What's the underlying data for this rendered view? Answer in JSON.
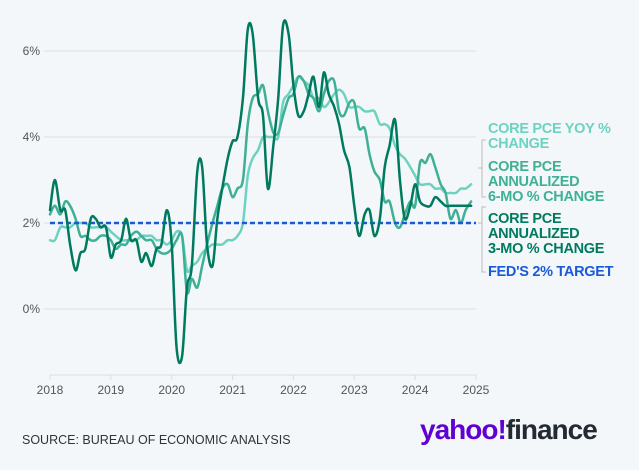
{
  "chart_data": {
    "type": "line",
    "title": "",
    "xlabel": "",
    "ylabel": "",
    "ylim": [
      -1.5,
      6.8
    ],
    "xlim": [
      2018,
      2025
    ],
    "yticks": [
      "0%",
      "2%",
      "4%",
      "6%"
    ],
    "ytick_values": [
      0,
      2,
      4,
      6
    ],
    "xticks": [
      "2018",
      "2019",
      "2020",
      "2021",
      "2022",
      "2023",
      "2024",
      "2025"
    ],
    "xtick_values": [
      2018,
      2019,
      2020,
      2021,
      2022,
      2023,
      2024,
      2025
    ],
    "grid": true,
    "legend_position": "right",
    "series": [
      {
        "name": "CORE PCE YOY % CHANGE",
        "color": "#6dd3c0",
        "x": [
          2018.0,
          2018.08,
          2018.17,
          2018.25,
          2018.33,
          2018.42,
          2018.5,
          2018.58,
          2018.67,
          2018.75,
          2018.83,
          2018.92,
          2019.0,
          2019.08,
          2019.17,
          2019.25,
          2019.33,
          2019.42,
          2019.5,
          2019.58,
          2019.67,
          2019.75,
          2019.83,
          2019.92,
          2020.0,
          2020.08,
          2020.17,
          2020.25,
          2020.33,
          2020.42,
          2020.5,
          2020.58,
          2020.67,
          2020.75,
          2020.83,
          2020.92,
          2021.0,
          2021.08,
          2021.17,
          2021.25,
          2021.33,
          2021.42,
          2021.5,
          2021.58,
          2021.67,
          2021.75,
          2021.83,
          2021.92,
          2022.0,
          2022.08,
          2022.17,
          2022.25,
          2022.33,
          2022.42,
          2022.5,
          2022.58,
          2022.67,
          2022.75,
          2022.83,
          2022.92,
          2023.0,
          2023.08,
          2023.17,
          2023.25,
          2023.33,
          2023.42,
          2023.5,
          2023.58,
          2023.67,
          2023.75,
          2023.83,
          2023.92,
          2024.0,
          2024.08,
          2024.17,
          2024.25,
          2024.33,
          2024.42,
          2024.5,
          2024.58,
          2024.67,
          2024.75,
          2024.83,
          2024.92
        ],
        "values": [
          1.6,
          1.6,
          1.9,
          1.9,
          1.9,
          2.0,
          2.0,
          2.0,
          1.9,
          1.9,
          1.9,
          1.9,
          1.8,
          1.7,
          1.6,
          1.6,
          1.6,
          1.6,
          1.7,
          1.7,
          1.7,
          1.6,
          1.6,
          1.5,
          1.6,
          1.8,
          1.7,
          0.9,
          1.0,
          1.1,
          1.3,
          1.4,
          1.5,
          1.5,
          1.5,
          1.6,
          1.6,
          1.7,
          2.0,
          3.1,
          3.5,
          3.7,
          4.0,
          4.0,
          4.0,
          4.0,
          4.8,
          5.0,
          5.2,
          5.4,
          5.3,
          5.2,
          4.9,
          4.9,
          4.7,
          4.8,
          5.0,
          5.1,
          5.0,
          4.7,
          4.7,
          4.7,
          4.6,
          4.6,
          4.6,
          4.3,
          4.3,
          4.2,
          3.8,
          3.6,
          3.5,
          3.3,
          3.1,
          2.9,
          2.9,
          2.9,
          2.8,
          2.8,
          2.7,
          2.7,
          2.7,
          2.8,
          2.8,
          2.9
        ]
      },
      {
        "name": "CORE PCE ANNUALIZED 6-MO % CHANGE",
        "color": "#3fb096",
        "x": [
          2018.0,
          2018.08,
          2018.17,
          2018.25,
          2018.33,
          2018.42,
          2018.5,
          2018.58,
          2018.67,
          2018.75,
          2018.83,
          2018.92,
          2019.0,
          2019.08,
          2019.17,
          2019.25,
          2019.33,
          2019.42,
          2019.5,
          2019.58,
          2019.67,
          2019.75,
          2019.83,
          2019.92,
          2020.0,
          2020.08,
          2020.17,
          2020.25,
          2020.33,
          2020.42,
          2020.5,
          2020.58,
          2020.67,
          2020.75,
          2020.83,
          2020.92,
          2021.0,
          2021.08,
          2021.17,
          2021.25,
          2021.33,
          2021.42,
          2021.5,
          2021.58,
          2021.67,
          2021.75,
          2021.83,
          2021.92,
          2022.0,
          2022.08,
          2022.17,
          2022.25,
          2022.33,
          2022.42,
          2022.5,
          2022.58,
          2022.67,
          2022.75,
          2022.83,
          2022.92,
          2023.0,
          2023.08,
          2023.17,
          2023.25,
          2023.33,
          2023.42,
          2023.5,
          2023.58,
          2023.67,
          2023.75,
          2023.83,
          2023.92,
          2024.0,
          2024.08,
          2024.17,
          2024.25,
          2024.33,
          2024.42,
          2024.5,
          2024.58,
          2024.67,
          2024.75,
          2024.83,
          2024.92
        ],
        "values": [
          2.2,
          2.4,
          2.2,
          2.5,
          2.4,
          2.1,
          1.7,
          1.7,
          1.6,
          1.6,
          1.7,
          1.7,
          1.6,
          1.4,
          1.5,
          1.5,
          1.7,
          1.8,
          1.7,
          1.6,
          1.6,
          1.4,
          1.3,
          1.3,
          1.4,
          1.6,
          1.7,
          0.4,
          0.7,
          0.5,
          1.0,
          1.5,
          2.0,
          2.4,
          2.8,
          2.9,
          2.6,
          2.8,
          3.0,
          4.3,
          4.9,
          5.0,
          5.2,
          4.6,
          4.1,
          4.1,
          4.5,
          4.9,
          5.0,
          5.4,
          5.3,
          5.0,
          4.9,
          4.6,
          5.0,
          5.3,
          5.3,
          4.6,
          4.5,
          4.8,
          4.8,
          4.2,
          4.2,
          3.6,
          3.2,
          3.0,
          2.5,
          2.5,
          2.0,
          1.9,
          2.2,
          2.5,
          2.4,
          3.4,
          3.4,
          3.6,
          3.3,
          2.9,
          2.7,
          2.1,
          2.3,
          2.0,
          2.3,
          2.5
        ]
      },
      {
        "name": "CORE PCE ANNUALIZED 3-MO % CHANGE",
        "color": "#007a5e",
        "x": [
          2018.0,
          2018.08,
          2018.17,
          2018.25,
          2018.33,
          2018.42,
          2018.5,
          2018.58,
          2018.67,
          2018.75,
          2018.83,
          2018.92,
          2019.0,
          2019.08,
          2019.17,
          2019.25,
          2019.33,
          2019.42,
          2019.5,
          2019.58,
          2019.67,
          2019.75,
          2019.83,
          2019.92,
          2020.0,
          2020.08,
          2020.17,
          2020.25,
          2020.33,
          2020.42,
          2020.5,
          2020.58,
          2020.67,
          2020.75,
          2020.83,
          2020.92,
          2021.0,
          2021.08,
          2021.17,
          2021.25,
          2021.33,
          2021.42,
          2021.5,
          2021.58,
          2021.67,
          2021.75,
          2021.83,
          2021.92,
          2022.0,
          2022.08,
          2022.17,
          2022.25,
          2022.33,
          2022.42,
          2022.5,
          2022.58,
          2022.67,
          2022.75,
          2022.83,
          2022.92,
          2023.0,
          2023.08,
          2023.17,
          2023.25,
          2023.33,
          2023.42,
          2023.5,
          2023.58,
          2023.67,
          2023.75,
          2023.83,
          2023.92,
          2024.0,
          2024.08,
          2024.17,
          2024.25,
          2024.33,
          2024.42,
          2024.5,
          2024.58,
          2024.67,
          2024.75,
          2024.83,
          2024.92
        ],
        "values": [
          2.3,
          3.0,
          2.3,
          2.3,
          1.5,
          0.9,
          1.3,
          1.4,
          2.1,
          2.1,
          1.9,
          1.9,
          1.2,
          1.5,
          1.6,
          2.1,
          1.6,
          1.6,
          1.1,
          1.3,
          1.0,
          1.4,
          1.5,
          2.3,
          1.5,
          -0.9,
          -1.1,
          0.5,
          1.0,
          3.2,
          3.3,
          1.5,
          1.0,
          2.1,
          2.8,
          3.5,
          3.9,
          4.0,
          4.9,
          6.5,
          6.4,
          4.9,
          4.5,
          2.8,
          3.8,
          4.9,
          6.6,
          6.4,
          5.2,
          4.5,
          4.6,
          5.0,
          5.4,
          4.7,
          5.5,
          5.0,
          4.7,
          4.3,
          3.7,
          3.3,
          2.4,
          1.7,
          2.2,
          2.3,
          1.7,
          2.1,
          3.3,
          3.8,
          4.4,
          3.0,
          2.1,
          2.4,
          2.9,
          2.5,
          2.4,
          2.4,
          2.6,
          2.5,
          2.4,
          2.4,
          2.4,
          2.4,
          2.4,
          2.4
        ]
      },
      {
        "name": "FED'S 2% TARGET",
        "color": "#1a5ad8",
        "style": "dashed",
        "x": [
          2018,
          2025
        ],
        "values": [
          2,
          2
        ]
      }
    ],
    "legend": [
      {
        "label": "CORE PCE YOY % CHANGE",
        "color": "#6dd3c0"
      },
      {
        "label": "CORE PCE ANNUALIZED 6-MO % CHANGE",
        "color": "#3fb096"
      },
      {
        "label": "CORE PCE ANNUALIZED 3-MO % CHANGE",
        "color": "#007a5e"
      },
      {
        "label": "FED'S 2% TARGET",
        "color": "#1a5ad8"
      }
    ]
  },
  "legend_text": {
    "yoy": [
      "CORE PCE YOY %",
      "CHANGE"
    ],
    "six_mo": [
      "CORE PCE",
      "ANNUALIZED",
      "6-MO % CHANGE"
    ],
    "three_mo": [
      "CORE PCE",
      "ANNUALIZED",
      "3-MO % CHANGE"
    ],
    "target": [
      "FED'S 2% TARGET"
    ]
  },
  "footer": {
    "source": "SOURCE: BUREAU OF ECONOMIC ANALYSIS",
    "logo_yahoo": "yahoo!",
    "logo_finance": "finance"
  }
}
